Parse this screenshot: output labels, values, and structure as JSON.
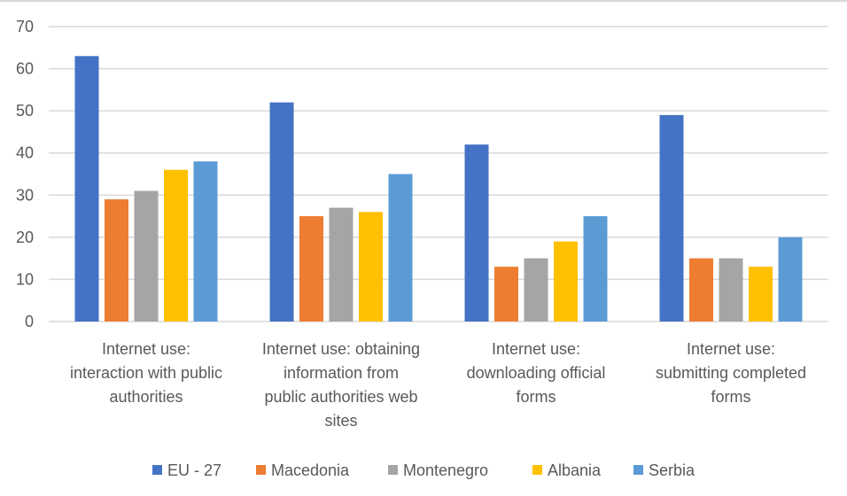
{
  "chart_data": {
    "type": "bar",
    "title": "",
    "xlabel": "",
    "ylabel": "",
    "ylim": [
      0,
      70
    ],
    "yticks": [
      0,
      10,
      20,
      30,
      40,
      50,
      60,
      70
    ],
    "grid": true,
    "legend_position": "bottom",
    "categories": [
      [
        "Internet use:",
        "interaction with public",
        "authorities"
      ],
      [
        "Internet use: obtaining",
        "information from",
        "public authorities web",
        "sites"
      ],
      [
        "Internet use:",
        "downloading official",
        "forms"
      ],
      [
        "Internet use:",
        "submitting completed",
        "forms"
      ]
    ],
    "series": [
      {
        "name": "EU - 27",
        "color": "#4472C4",
        "values": [
          63,
          52,
          42,
          49
        ]
      },
      {
        "name": "Macedonia",
        "color": "#ED7D31",
        "values": [
          29,
          25,
          13,
          15
        ]
      },
      {
        "name": "Montenegro",
        "color": "#A5A5A5",
        "values": [
          31,
          27,
          15,
          15
        ]
      },
      {
        "name": "Albania",
        "color": "#FFC000",
        "values": [
          36,
          26,
          19,
          13
        ]
      },
      {
        "name": "Serbia",
        "color": "#5B9BD5",
        "values": [
          38,
          35,
          25,
          20
        ]
      }
    ]
  }
}
